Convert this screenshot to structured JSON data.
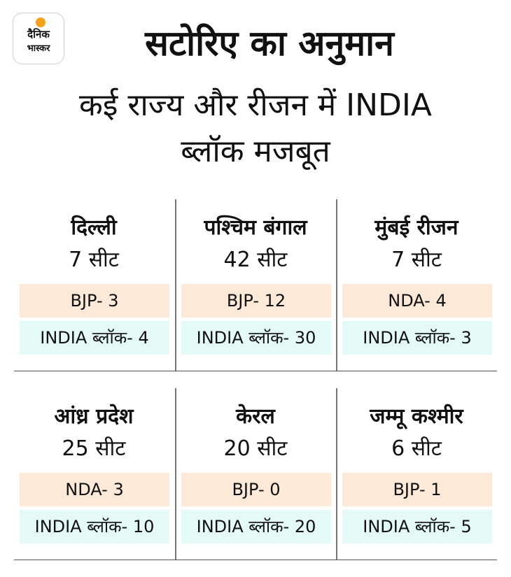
{
  "logo": {
    "line1": "दैनिक",
    "line2": "भास्कर"
  },
  "title": "सटोरिए का अनुमान",
  "subtitle_line1": "कई राज्य और रीजन में INDIA",
  "subtitle_line2": "ब्लॉक मजबूत",
  "regions": [
    {
      "name": "दिल्ली",
      "seats": "7 सीट",
      "row1": "BJP- 3",
      "row2": "INDIA ब्लॉक- 4"
    },
    {
      "name": "पश्चिम बंगाल",
      "seats": "42 सीट",
      "row1": "BJP- 12",
      "row2": "INDIA ब्लॉक- 30"
    },
    {
      "name": "मुंबई रीजन",
      "seats": "7 सीट",
      "row1": "NDA- 4",
      "row2": "INDIA ब्लॉक- 3"
    },
    {
      "name": "आंध्र प्रदेश",
      "seats": "25 सीट",
      "row1": "NDA- 3",
      "row2": "INDIA ब्लॉक- 10"
    },
    {
      "name": "केरल",
      "seats": "20 सीट",
      "row1": "BJP- 0",
      "row2": "INDIA ब्लॉक- 20"
    },
    {
      "name": "जम्मू कश्मीर",
      "seats": "6 सीट",
      "row1": "BJP- 1",
      "row2": "INDIA ब्लॉक- 5"
    }
  ],
  "colors": {
    "party_row_bg": "#fde9d8",
    "india_row_bg": "#e4faf7",
    "logo_sun": "#f7a21a"
  }
}
